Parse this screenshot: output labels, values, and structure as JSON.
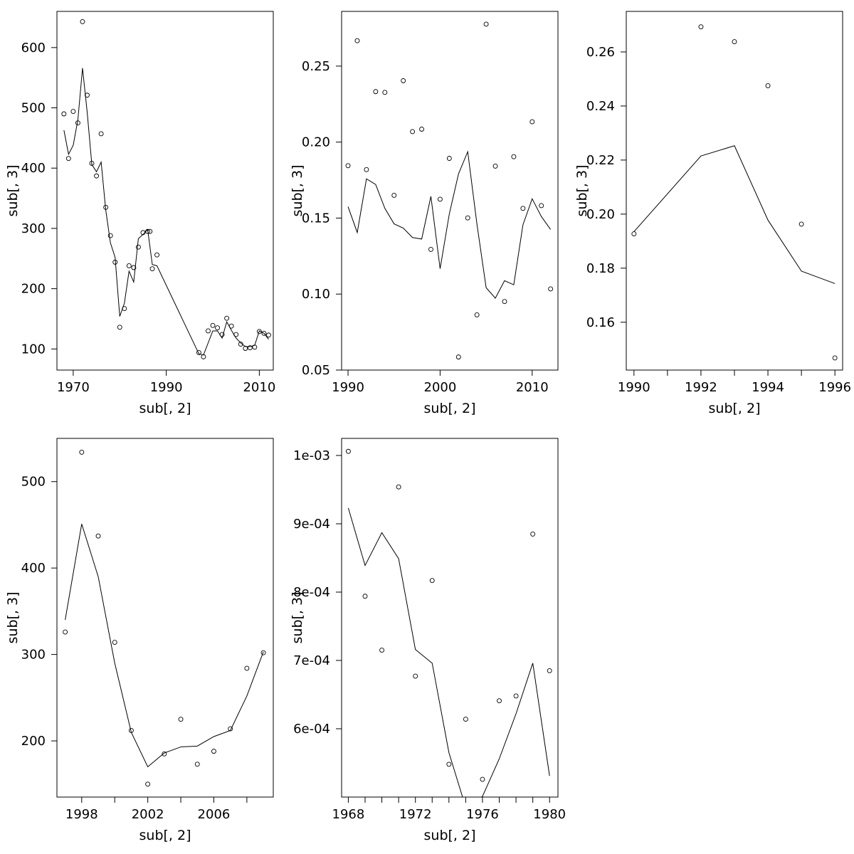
{
  "chart_data": [
    {
      "type": "scatter",
      "xlabel": "sub[, 2]",
      "ylabel": "sub[, 3]",
      "xlim": [
        1966.5,
        2013.0
      ],
      "ylim": [
        65,
        660
      ],
      "xticks": [
        1970,
        1990,
        2010
      ],
      "yticks": [
        100,
        200,
        300,
        400,
        500,
        600
      ],
      "xtick_labels": [
        "1970",
        "1990",
        "2010"
      ],
      "ytick_labels": [
        "100",
        "200",
        "300",
        "400",
        "500",
        "600"
      ],
      "series": [
        {
          "kind": "points",
          "x": [
            1968,
            1969,
            1970,
            1971,
            1972,
            1973,
            1974,
            1975,
            1976,
            1977,
            1978,
            1979,
            1980,
            1981,
            1982,
            1983,
            1984,
            1985,
            1986,
            1986.5,
            1987,
            1988,
            1997,
            1998,
            1999,
            2000,
            2001,
            2002,
            2003,
            2004,
            2005,
            2006,
            2007,
            2008,
            2009,
            2010,
            2011,
            2012
          ],
          "y": [
            490,
            416,
            494,
            475,
            643,
            521,
            408,
            387,
            457,
            335,
            288,
            244,
            136,
            167,
            238,
            235,
            269,
            293,
            295,
            295,
            233,
            256,
            94,
            87,
            130,
            139,
            135,
            124,
            151,
            138,
            124,
            108,
            101,
            102,
            103,
            129,
            126,
            123
          ]
        },
        {
          "kind": "line",
          "x": [
            1968,
            1969,
            1970,
            1971,
            1972,
            1973,
            1974,
            1975,
            1976,
            1977,
            1978,
            1979,
            1980,
            1981,
            1982,
            1983,
            1984,
            1985,
            1986,
            1987,
            1988,
            1997,
            1998,
            1999,
            2000,
            2001,
            2002,
            2003,
            2004,
            2005,
            2006,
            2007,
            2008,
            2009,
            2010,
            2011,
            2012
          ],
          "y": [
            463,
            423,
            438,
            480,
            566,
            493,
            406,
            394,
            410,
            330,
            276,
            252,
            154,
            176,
            229,
            211,
            283,
            290,
            298,
            240,
            238,
            92,
            90,
            110,
            130,
            130,
            118,
            145,
            131,
            118,
            110,
            104,
            104,
            106,
            130,
            126,
            116
          ]
        }
      ]
    },
    {
      "type": "scatter",
      "xlabel": "sub[, 2]",
      "ylabel": "sub[, 3]",
      "xlim": [
        1989.3,
        2012.8
      ],
      "ylim": [
        0.05,
        0.286
      ],
      "xticks": [
        1990,
        2000,
        2010
      ],
      "yticks": [
        0.05,
        0.1,
        0.15,
        0.2,
        0.25
      ],
      "xtick_labels": [
        "1990",
        "2000",
        "2010"
      ],
      "ytick_labels": [
        "0.05",
        "0.10",
        "0.15",
        "0.20",
        "0.25"
      ],
      "series": [
        {
          "kind": "points",
          "x": [
            1990,
            1991,
            1992,
            1993,
            1994,
            1995,
            1996,
            1997,
            1998,
            1999,
            2000,
            2001,
            2002,
            2003,
            2004,
            2005,
            2006,
            2007,
            2008,
            2009,
            2010,
            2011,
            2012
          ],
          "y": [
            0.1845,
            0.2667,
            0.1819,
            0.2332,
            0.2327,
            0.165,
            0.2404,
            0.2069,
            0.2085,
            0.1294,
            0.1624,
            0.1893,
            0.0586,
            0.1501,
            0.0863,
            0.2776,
            0.1842,
            0.0951,
            0.1904,
            0.1564,
            0.2134,
            0.1582,
            0.1034
          ]
        },
        {
          "kind": "line",
          "x": [
            1990,
            1991,
            1992,
            1993,
            1994,
            1995,
            1996,
            1997,
            1998,
            1999,
            2000,
            2001,
            2002,
            2003,
            2004,
            2005,
            2006,
            2007,
            2008,
            2009,
            2010,
            2011,
            2012
          ],
          "y": [
            0.1575,
            0.1405,
            0.1758,
            0.1721,
            0.1564,
            0.1462,
            0.1434,
            0.1372,
            0.1362,
            0.1643,
            0.1167,
            0.1527,
            0.1791,
            0.1937,
            0.1461,
            0.1042,
            0.0973,
            0.1088,
            0.1061,
            0.1456,
            0.1627,
            0.151,
            0.1425
          ]
        }
      ]
    },
    {
      "type": "scatter",
      "xlabel": "sub[, 2]",
      "ylabel": "sub[, 3]",
      "xlim": [
        1989.77,
        1996.23
      ],
      "ylim": [
        0.1423,
        0.275
      ],
      "xticks": [
        1990,
        1991,
        1992,
        1993,
        1994,
        1995,
        1996
      ],
      "yticks": [
        0.16,
        0.18,
        0.2,
        0.22,
        0.24,
        0.26
      ],
      "xtick_labels": [
        "1990",
        "",
        "1992",
        "",
        "1994",
        "",
        "1996"
      ],
      "ytick_labels": [
        "0.16",
        "0.18",
        "0.20",
        "0.22",
        "0.24",
        "0.26"
      ],
      "series": [
        {
          "kind": "points",
          "x": [
            1990,
            1992,
            1993,
            1994,
            1995,
            1996
          ],
          "y": [
            0.1927,
            0.2693,
            0.2638,
            0.2475,
            0.1963,
            0.1468
          ]
        },
        {
          "kind": "line",
          "x": [
            1990,
            1992,
            1993,
            1994,
            1995,
            1996
          ],
          "y": [
            0.1935,
            0.2215,
            0.2253,
            0.1978,
            0.1789,
            0.1743
          ]
        }
      ]
    },
    {
      "type": "scatter",
      "xlabel": "sub[, 2]",
      "ylabel": "sub[, 3]",
      "xlim": [
        1996.5,
        2009.6
      ],
      "ylim": [
        135,
        550
      ],
      "xticks": [
        1998,
        2000,
        2002,
        2004,
        2006,
        2008
      ],
      "yticks": [
        200,
        300,
        400,
        500
      ],
      "xtick_labels": [
        "1998",
        "",
        "2002",
        "",
        "2006",
        ""
      ],
      "ytick_labels": [
        "200",
        "300",
        "400",
        "500"
      ],
      "series": [
        {
          "kind": "points",
          "x": [
            1997,
            1998,
            1999,
            2000,
            2001,
            2002,
            2003,
            2004,
            2005,
            2006,
            2007,
            2008,
            2009
          ],
          "y": [
            326,
            534,
            437,
            314,
            212,
            150,
            185,
            225,
            173,
            188,
            214,
            284,
            302
          ]
        },
        {
          "kind": "line",
          "x": [
            1997,
            1998,
            1999,
            2000,
            2001,
            2002,
            2003,
            2004,
            2005,
            2006,
            2007,
            2008,
            2009
          ],
          "y": [
            340,
            451,
            390,
            290,
            210,
            170,
            186,
            193,
            194,
            205,
            212,
            252,
            303
          ]
        }
      ]
    },
    {
      "type": "scatter",
      "xlabel": "sub[, 2]",
      "ylabel": "sub[, 3]",
      "xlim": [
        1967.6,
        1980.5
      ],
      "ylim": [
        0.0005,
        0.001025
      ],
      "xticks": [
        1968,
        1969,
        1970,
        1971,
        1972,
        1973,
        1974,
        1975,
        1976,
        1977,
        1978,
        1979,
        1980
      ],
      "yticks": [
        0.0006,
        0.0007,
        0.0008,
        0.0009,
        0.001
      ],
      "xtick_labels": [
        "1968",
        "",
        "",
        "",
        "1972",
        "",
        "",
        "",
        "1976",
        "",
        "",
        "",
        "1980"
      ],
      "ytick_labels": [
        "6e-04",
        "7e-04",
        "8e-04",
        "9e-04",
        "1e-03"
      ],
      "series": [
        {
          "kind": "points",
          "x": [
            1968,
            1969,
            1970,
            1971,
            1972,
            1973,
            1974,
            1975,
            1976,
            1977,
            1978,
            1979,
            1980
          ],
          "y": [
            0.001006,
            0.000794,
            0.000715,
            0.000954,
            0.000677,
            0.000817,
            0.000548,
            0.000614,
            0.000526,
            0.000641,
            0.000648,
            0.000885,
            0.000685
          ]
        },
        {
          "kind": "line",
          "x": [
            1968,
            1969,
            1970,
            1971,
            1972,
            1973,
            1974,
            1975,
            1976,
            1977,
            1978,
            1979,
            1980
          ],
          "y": [
            0.000923,
            0.000839,
            0.000887,
            0.000849,
            0.000716,
            0.000696,
            0.000565,
            0.000485,
            0.000501,
            0.000556,
            0.000622,
            0.000696,
            0.000531
          ]
        }
      ]
    }
  ]
}
